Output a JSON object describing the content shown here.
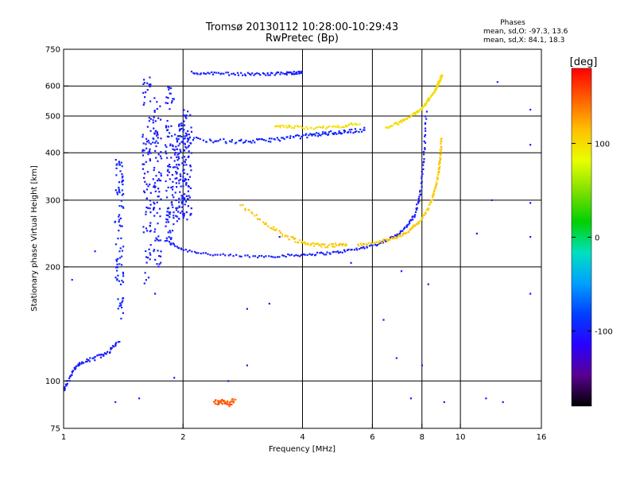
{
  "chart_data": {
    "type": "scatter",
    "title": "Tromsø 20130112 10:28:00-10:29:43",
    "subtitle": "RwPretec (Bp)",
    "stats": {
      "heading": "Phases",
      "line_o": "mean, sd,O: -97.3, 13.6",
      "line_x": "mean, sd,X:  84.1, 18.3"
    },
    "xlabel": "Frequency [MHz]",
    "ylabel": "Stationary phase Virtual Height [km]",
    "x_scale": "log",
    "y_scale": "log",
    "xlim": [
      1,
      16
    ],
    "ylim": [
      75,
      750
    ],
    "x_ticks": [
      1,
      2,
      4,
      6,
      8,
      10,
      16
    ],
    "x_tick_labels": [
      "1",
      "2",
      "4",
      "6",
      "8",
      "10",
      "16"
    ],
    "y_ticks": [
      75,
      100,
      200,
      300,
      400,
      500,
      600,
      750
    ],
    "y_tick_labels": [
      "75",
      "100",
      "200",
      "300",
      "400",
      "500",
      "600",
      "750"
    ],
    "grid_x": [
      2,
      4,
      6,
      8,
      10
    ],
    "grid_y": [
      100,
      200,
      300,
      400,
      500,
      600
    ],
    "grid": true,
    "colorbar": {
      "label": "[deg]",
      "min": -180,
      "max": 180,
      "ticks": [
        100,
        0,
        -100
      ],
      "tick_labels": [
        "100",
        "0",
        "-100"
      ],
      "colors": [
        "#000000",
        "#5a0090",
        "#2a00ff",
        "#0040ff",
        "#00a0ff",
        "#00e0c0",
        "#00d000",
        "#80e000",
        "#e8ff00",
        "#ffc000",
        "#ff6000",
        "#ff0000"
      ]
    },
    "series": [
      {
        "kind": "curve",
        "x": [
          1.8,
          2.0,
          2.4,
          3.0,
          3.6,
          4.2,
          4.8,
          5.5,
          6.2,
          6.8,
          7.3,
          7.7,
          7.95,
          8.1,
          8.2
        ],
        "y": [
          235,
          222,
          215,
          213,
          214,
          216,
          218,
          223,
          230,
          240,
          255,
          275,
          320,
          400,
          520
        ],
        "phase": -100,
        "spread": 2
      },
      {
        "kind": "curve",
        "x": [
          2.8,
          3.2,
          3.6,
          4.0,
          4.4,
          4.8,
          5.2
        ],
        "y": [
          290,
          262,
          242,
          232,
          228,
          228,
          230
        ],
        "phase": 110,
        "spread": 3
      },
      {
        "kind": "curve",
        "x": [
          5.5,
          6.2,
          6.8,
          7.3,
          7.8,
          8.3,
          8.6,
          8.8,
          8.9,
          8.95
        ],
        "y": [
          228,
          232,
          238,
          246,
          260,
          285,
          315,
          350,
          390,
          440
        ],
        "phase": 110,
        "spread": 2
      },
      {
        "kind": "curve",
        "x": [
          1.95,
          2.3,
          2.7,
          3.1,
          3.5,
          4.0,
          4.4,
          4.8,
          5.2,
          5.8
        ],
        "y": [
          440,
          432,
          428,
          430,
          435,
          442,
          448,
          452,
          455,
          462
        ],
        "phase": -95,
        "spread": 3
      },
      {
        "kind": "curve",
        "x": [
          3.4,
          3.8,
          4.4,
          5.0,
          5.6
        ],
        "y": [
          470,
          468,
          465,
          470,
          478
        ],
        "phase": 100,
        "spread": 2
      },
      {
        "kind": "curve",
        "x": [
          6.5,
          7.0,
          7.5,
          8.0,
          8.3,
          8.6,
          8.8,
          9.0
        ],
        "y": [
          465,
          480,
          500,
          525,
          550,
          580,
          610,
          640
        ],
        "phase": 100,
        "spread": 2
      },
      {
        "kind": "curve",
        "x": [
          2.1,
          2.4,
          2.8,
          3.2,
          3.6,
          3.8,
          4.0
        ],
        "y": [
          650,
          648,
          645,
          645,
          648,
          650,
          652
        ],
        "phase": -100,
        "spread": 2
      },
      {
        "kind": "column",
        "x": 1.38,
        "y0": 145,
        "y1": 385,
        "phase": -95
      },
      {
        "kind": "column",
        "x": 1.62,
        "y0": 180,
        "y1": 640,
        "phase": -100
      },
      {
        "kind": "column",
        "x": 1.72,
        "y0": 200,
        "y1": 560,
        "phase": -100
      },
      {
        "kind": "column",
        "x": 1.85,
        "y0": 230,
        "y1": 620,
        "phase": -100
      },
      {
        "kind": "column",
        "x": 1.95,
        "y0": 260,
        "y1": 480,
        "phase": -100
      },
      {
        "kind": "column",
        "x": 2.05,
        "y0": 265,
        "y1": 520,
        "phase": -100
      },
      {
        "kind": "curve",
        "x": [
          1.0,
          1.05,
          1.1,
          1.2,
          1.3,
          1.38
        ],
        "y": [
          95,
          105,
          112,
          115,
          120,
          128
        ],
        "phase": -100,
        "spread": 3
      },
      {
        "kind": "curve",
        "x": [
          2.4,
          2.5,
          2.6,
          2.7
        ],
        "y": [
          88,
          88,
          87,
          89
        ],
        "phase": 150,
        "spread": 4
      },
      {
        "kind": "points",
        "x": [
          1.05,
          1.2,
          1.35,
          1.55,
          1.7,
          1.9,
          2.6,
          2.9,
          2.9,
          3.3,
          3.5,
          5.3,
          6.4,
          6.9,
          7.1,
          7.5,
          8.0,
          8.3,
          9.1,
          11.0,
          11.6,
          12.0,
          12.4,
          12.8,
          15.0,
          15.0,
          15.0,
          15.0,
          15.0
        ],
        "y": [
          185,
          220,
          88,
          90,
          170,
          102,
          100,
          155,
          110,
          160,
          240,
          205,
          145,
          115,
          195,
          90,
          110,
          180,
          88,
          245,
          90,
          300,
          615,
          88,
          295,
          240,
          170,
          420,
          520
        ],
        "phase": -100
      }
    ]
  }
}
